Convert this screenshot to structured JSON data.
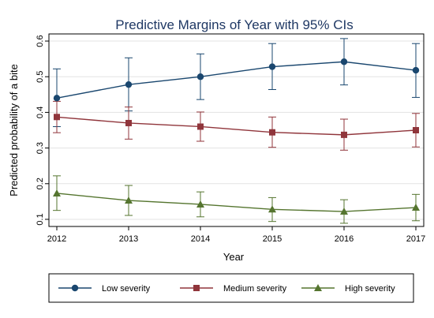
{
  "chart_data": {
    "type": "line",
    "title": "Predictive Margins of Year with 95% CIs",
    "xlabel": "Year",
    "ylabel": "Predicted probability of a bite",
    "x": [
      2012,
      2013,
      2014,
      2015,
      2016,
      2017
    ],
    "x_tick_labels": [
      "2012",
      "2013",
      "2014",
      "2015",
      "2016",
      "2017"
    ],
    "ylim": [
      0.08,
      0.62
    ],
    "y_ticks": [
      0.1,
      0.2,
      0.3,
      0.4,
      0.5,
      0.6
    ],
    "y_tick_labels": [
      "0.1",
      "0.2",
      "0.3",
      "0.4",
      "0.5",
      "0.6"
    ],
    "grid": true,
    "legend_position": "bottom",
    "series": [
      {
        "name": "Low severity",
        "color": "#1a476f",
        "marker": "circle",
        "values": [
          0.44,
          0.478,
          0.5,
          0.528,
          0.542,
          0.518
        ],
        "ci_low": [
          0.36,
          0.404,
          0.436,
          0.464,
          0.477,
          0.442
        ],
        "ci_high": [
          0.522,
          0.553,
          0.564,
          0.593,
          0.607,
          0.593
        ]
      },
      {
        "name": "Medium severity",
        "color": "#90353b",
        "marker": "square",
        "values": [
          0.387,
          0.37,
          0.36,
          0.344,
          0.337,
          0.35
        ],
        "ci_low": [
          0.343,
          0.325,
          0.319,
          0.302,
          0.294,
          0.303
        ],
        "ci_high": [
          0.431,
          0.415,
          0.401,
          0.387,
          0.381,
          0.397
        ]
      },
      {
        "name": "High severity",
        "color": "#55752f",
        "marker": "triangle",
        "values": [
          0.173,
          0.153,
          0.142,
          0.128,
          0.122,
          0.133
        ],
        "ci_low": [
          0.125,
          0.111,
          0.107,
          0.094,
          0.089,
          0.096
        ],
        "ci_high": [
          0.222,
          0.195,
          0.177,
          0.161,
          0.155,
          0.17
        ]
      }
    ]
  }
}
